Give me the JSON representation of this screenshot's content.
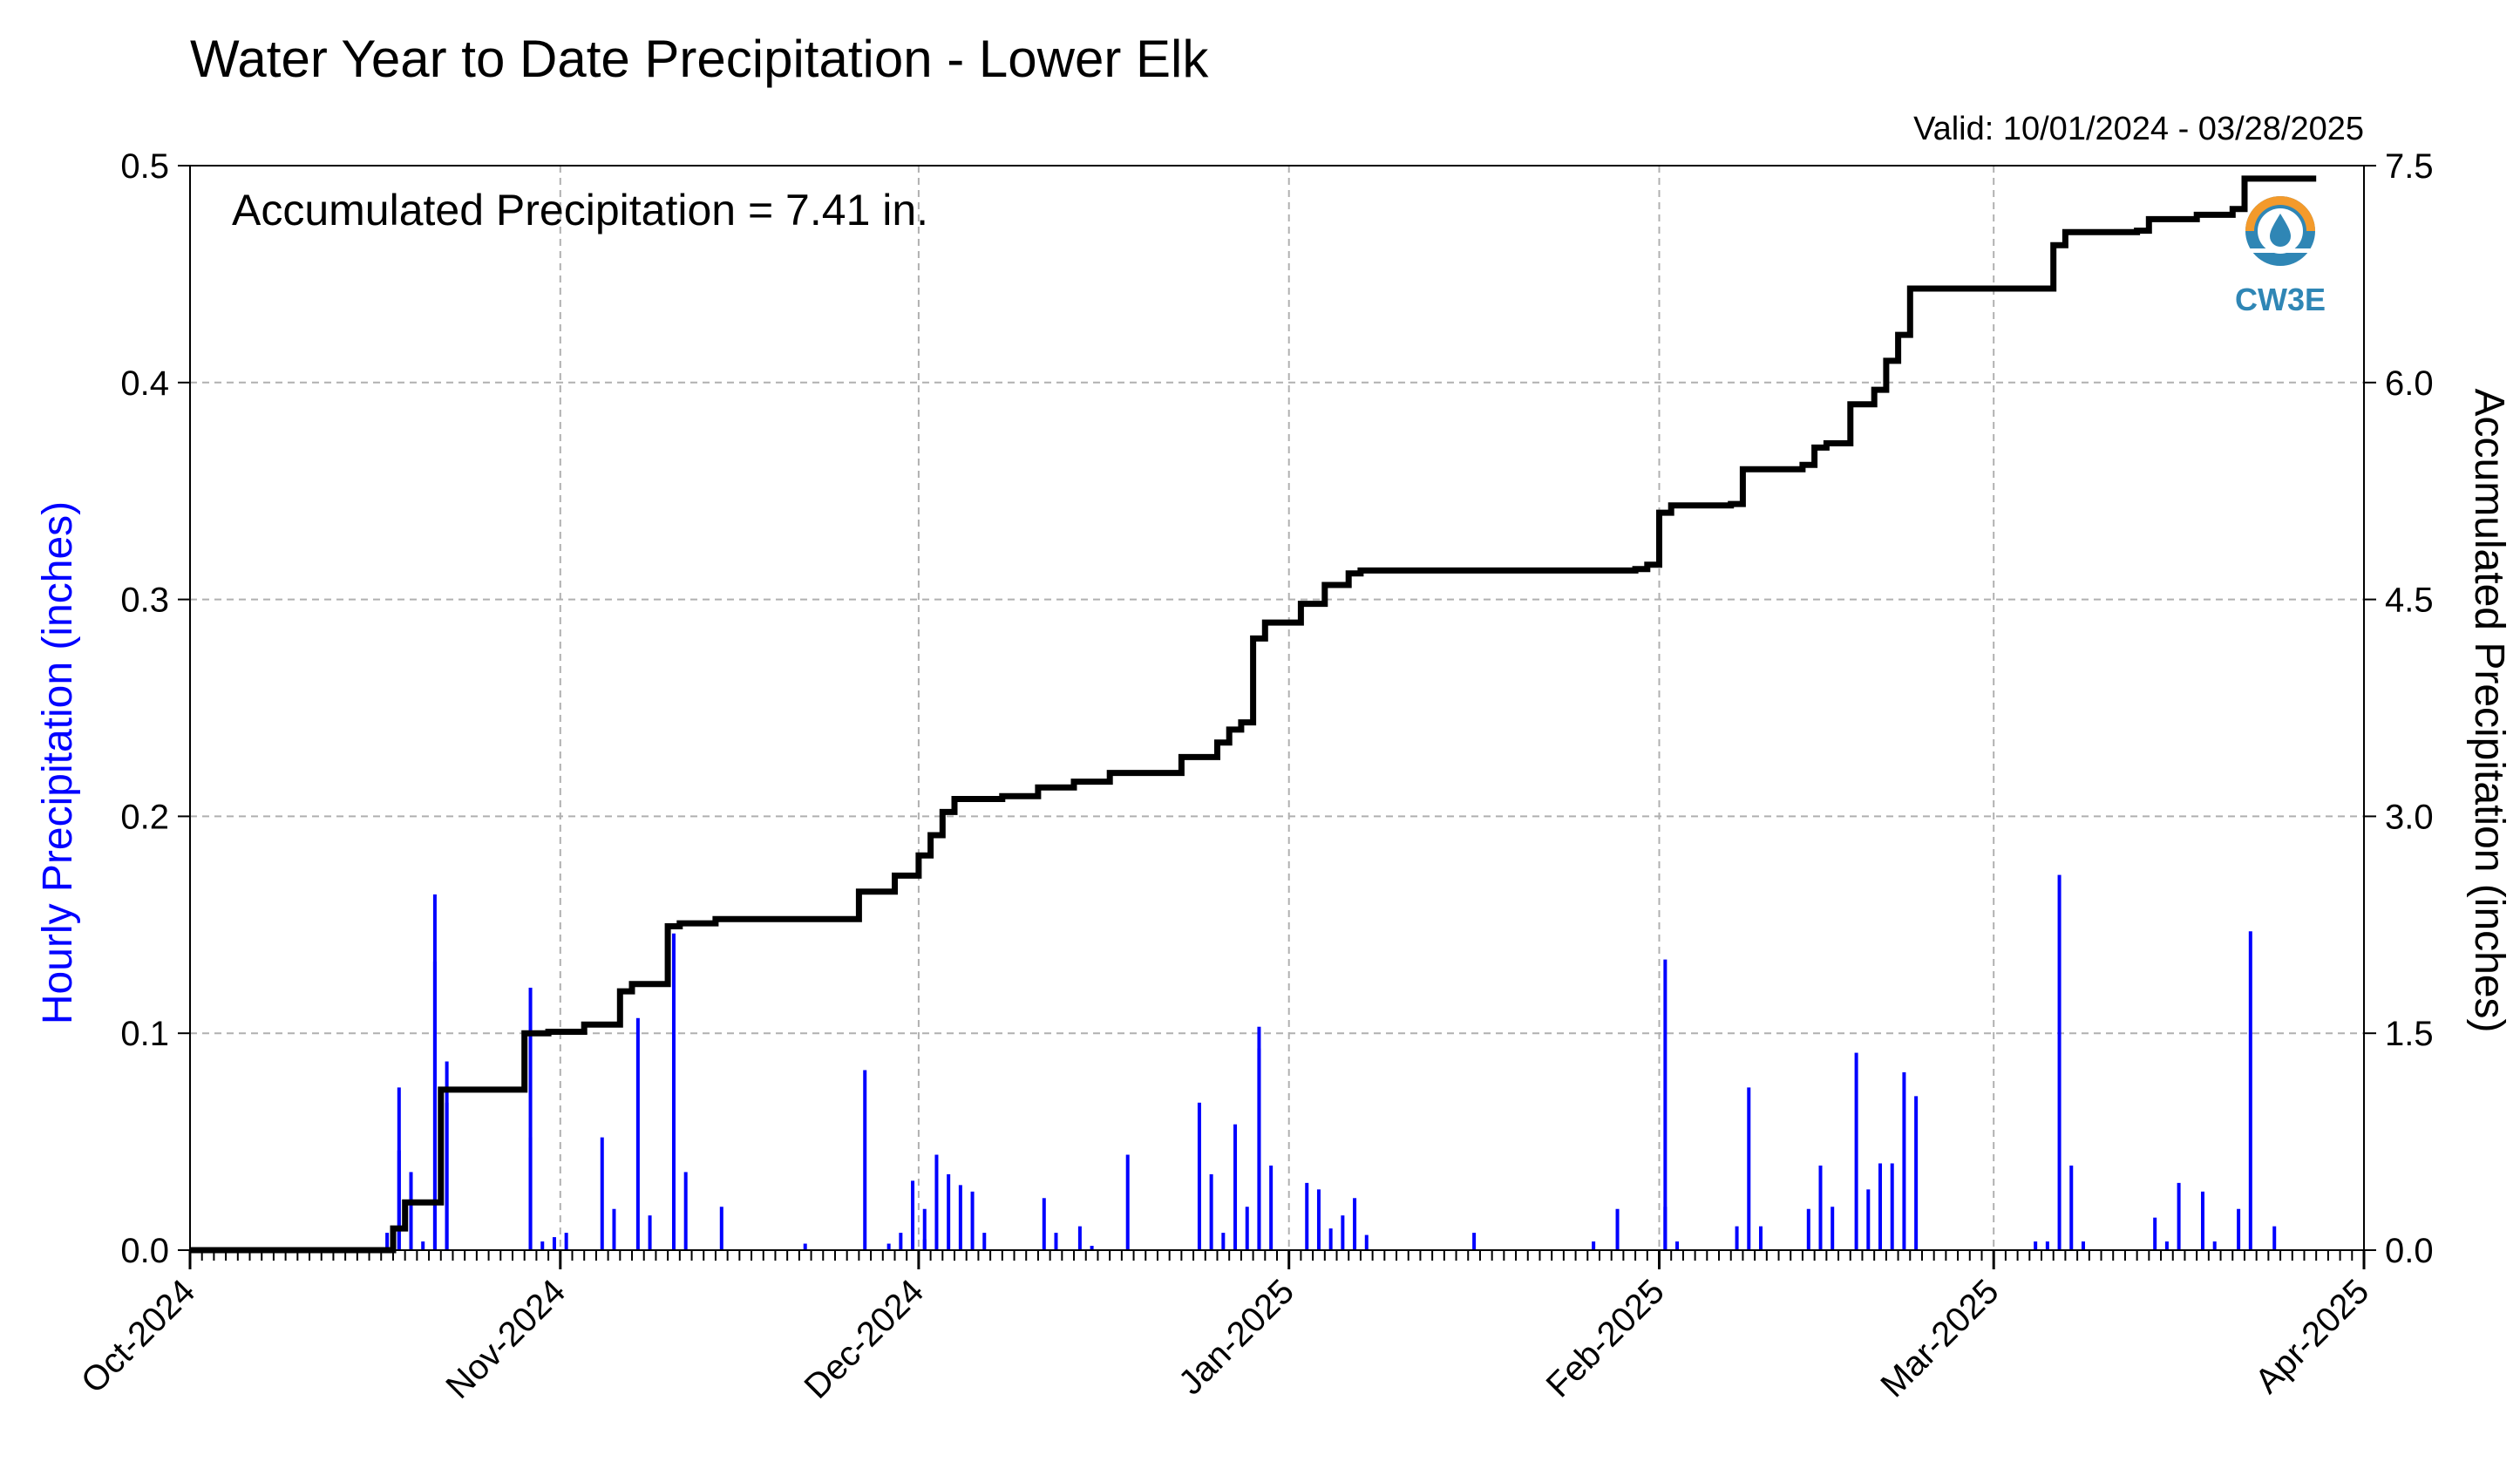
{
  "title": "Water Year to Date Precipitation - Lower Elk",
  "valid_text": "Valid: 10/01/2024 - 03/28/2025",
  "annotation": "Accumulated Precipitation = 7.41 in.",
  "logo_text": "CW3E",
  "colors": {
    "bars": "#0000ff",
    "line": "#000000",
    "left_label": "#0000ff",
    "grid": "#b0b0b0",
    "logo": "#2f86b5",
    "logo_accent": "#f39a2b"
  },
  "chart_data": {
    "type": "bar",
    "title": "Water Year to Date Precipitation - Lower Elk",
    "x_ticks": [
      "Oct-2024",
      "Nov-2024",
      "Dec-2024",
      "Jan-2025",
      "Feb-2025",
      "Mar-2025",
      "Apr-2025"
    ],
    "x_range": [
      "2024-10-01",
      "2025-04-01"
    ],
    "ylabel_left": "Hourly Precipitation (inches)",
    "ylabel_right": "Accumulated Precipitation (inches)",
    "ylim_left": [
      0,
      0.5
    ],
    "ylim_right": [
      0,
      7.5
    ],
    "yticks_left": [
      "0.0",
      "0.1",
      "0.2",
      "0.3",
      "0.4",
      "0.5"
    ],
    "yticks_right": [
      "0.0",
      "1.5",
      "3.0",
      "4.5",
      "6.0",
      "7.5"
    ],
    "grid": true,
    "series": [
      {
        "name": "Hourly Precipitation",
        "type": "bar",
        "axis": "left",
        "points": [
          [
            "2024-10-17",
            0.008
          ],
          [
            "2024-10-18",
            0.075
          ],
          [
            "2024-10-18",
            0.046
          ],
          [
            "2024-10-19",
            0.036
          ],
          [
            "2024-10-20",
            0.004
          ],
          [
            "2024-10-21",
            0.133
          ],
          [
            "2024-10-21",
            0.164
          ],
          [
            "2024-10-22",
            0.087
          ],
          [
            "2024-10-22",
            0.068
          ],
          [
            "2024-10-29",
            0.121
          ],
          [
            "2024-10-29",
            0.052
          ],
          [
            "2024-10-30",
            0.004
          ],
          [
            "2024-10-31",
            0.006
          ],
          [
            "2024-11-01",
            0.008
          ],
          [
            "2024-11-04",
            0.052
          ],
          [
            "2024-11-05",
            0.019
          ],
          [
            "2024-11-07",
            0.107
          ],
          [
            "2024-11-08",
            0.016
          ],
          [
            "2024-11-10",
            0.146
          ],
          [
            "2024-11-11",
            0.036
          ],
          [
            "2024-11-14",
            0.02
          ],
          [
            "2024-11-21",
            0.003
          ],
          [
            "2024-11-26",
            0.083
          ],
          [
            "2024-11-28",
            0.003
          ],
          [
            "2024-11-29",
            0.008
          ],
          [
            "2024-11-30",
            0.032
          ],
          [
            "2024-12-01",
            0.019
          ],
          [
            "2024-12-01",
            0.005
          ],
          [
            "2024-12-02",
            0.044
          ],
          [
            "2024-12-03",
            0.035
          ],
          [
            "2024-12-04",
            0.03
          ],
          [
            "2024-12-05",
            0.027
          ],
          [
            "2024-12-06",
            0.008
          ],
          [
            "2024-12-11",
            0.024
          ],
          [
            "2024-12-12",
            0.008
          ],
          [
            "2024-12-14",
            0.011
          ],
          [
            "2024-12-15",
            0.002
          ],
          [
            "2024-12-18",
            0.044
          ],
          [
            "2024-12-24",
            0.068
          ],
          [
            "2024-12-25",
            0.035
          ],
          [
            "2024-12-26",
            0.008
          ],
          [
            "2024-12-27",
            0.058
          ],
          [
            "2024-12-28",
            0.02
          ],
          [
            "2024-12-29",
            0.103
          ],
          [
            "2024-12-29",
            0.093
          ],
          [
            "2024-12-30",
            0.039
          ],
          [
            "2025-01-02",
            0.031
          ],
          [
            "2025-01-03",
            0.028
          ],
          [
            "2025-01-04",
            0.01
          ],
          [
            "2025-01-05",
            0.016
          ],
          [
            "2025-01-06",
            0.024
          ],
          [
            "2025-01-07",
            0.007
          ],
          [
            "2025-01-16",
            0.008
          ],
          [
            "2025-01-26",
            0.004
          ],
          [
            "2025-01-28",
            0.019
          ],
          [
            "2025-02-01",
            0.134
          ],
          [
            "2025-02-01",
            0.02
          ],
          [
            "2025-02-02",
            0.004
          ],
          [
            "2025-02-07",
            0.011
          ],
          [
            "2025-02-08",
            0.075
          ],
          [
            "2025-02-09",
            0.011
          ],
          [
            "2025-02-13",
            0.019
          ],
          [
            "2025-02-14",
            0.039
          ],
          [
            "2025-02-15",
            0.02
          ],
          [
            "2025-02-17",
            0.091
          ],
          [
            "2025-02-18",
            0.028
          ],
          [
            "2025-02-19",
            0.04
          ],
          [
            "2025-02-20",
            0.04
          ],
          [
            "2025-02-21",
            0.082
          ],
          [
            "2025-02-22",
            0.071
          ],
          [
            "2025-03-04",
            0.004
          ],
          [
            "2025-03-05",
            0.004
          ],
          [
            "2025-03-06",
            0.173
          ],
          [
            "2025-03-07",
            0.039
          ],
          [
            "2025-03-08",
            0.004
          ],
          [
            "2025-03-14",
            0.015
          ],
          [
            "2025-03-15",
            0.004
          ],
          [
            "2025-03-16",
            0.031
          ],
          [
            "2025-03-18",
            0.027
          ],
          [
            "2025-03-19",
            0.004
          ],
          [
            "2025-03-21",
            0.019
          ],
          [
            "2025-03-22",
            0.147
          ],
          [
            "2025-03-24",
            0.011
          ]
        ]
      },
      {
        "name": "Accumulated Precipitation",
        "type": "line",
        "axis": "right",
        "points": [
          [
            "2024-10-01",
            0.0
          ],
          [
            "2024-10-17",
            0.0
          ],
          [
            "2024-10-18",
            0.15
          ],
          [
            "2024-10-19",
            0.33
          ],
          [
            "2024-10-21",
            0.33
          ],
          [
            "2024-10-22",
            0.9
          ],
          [
            "2024-10-22",
            1.11
          ],
          [
            "2024-10-29",
            1.11
          ],
          [
            "2024-10-29",
            1.5
          ],
          [
            "2024-10-31",
            1.51
          ],
          [
            "2024-11-03",
            1.51
          ],
          [
            "2024-11-03",
            1.56
          ],
          [
            "2024-11-06",
            1.58
          ],
          [
            "2024-11-06",
            1.79
          ],
          [
            "2024-11-07",
            1.84
          ],
          [
            "2024-11-09",
            1.84
          ],
          [
            "2024-11-10",
            2.12
          ],
          [
            "2024-11-10",
            2.24
          ],
          [
            "2024-11-11",
            2.26
          ],
          [
            "2024-11-14",
            2.29
          ],
          [
            "2024-11-26",
            2.3
          ],
          [
            "2024-11-26",
            2.48
          ],
          [
            "2024-11-29",
            2.5
          ],
          [
            "2024-11-29",
            2.59
          ],
          [
            "2024-12-01",
            2.61
          ],
          [
            "2024-12-01",
            2.73
          ],
          [
            "2024-12-02",
            2.87
          ],
          [
            "2024-12-03",
            3.03
          ],
          [
            "2024-12-04",
            3.12
          ],
          [
            "2024-12-08",
            3.14
          ],
          [
            "2024-12-11",
            3.14
          ],
          [
            "2024-12-11",
            3.2
          ],
          [
            "2024-12-14",
            3.24
          ],
          [
            "2024-12-17",
            3.25
          ],
          [
            "2024-12-17",
            3.3
          ],
          [
            "2024-12-23",
            3.31
          ],
          [
            "2024-12-23",
            3.41
          ],
          [
            "2024-12-26",
            3.51
          ],
          [
            "2024-12-27",
            3.6
          ],
          [
            "2024-12-28",
            3.65
          ],
          [
            "2024-12-29",
            4.23
          ],
          [
            "2024-12-30",
            4.34
          ],
          [
            "2025-01-01",
            4.34
          ],
          [
            "2025-01-02",
            4.47
          ],
          [
            "2025-01-04",
            4.6
          ],
          [
            "2025-01-06",
            4.68
          ],
          [
            "2025-01-07",
            4.7
          ],
          [
            "2025-01-30",
            4.71
          ],
          [
            "2025-01-31",
            4.74
          ],
          [
            "2025-02-01",
            4.74
          ],
          [
            "2025-02-01",
            5.1
          ],
          [
            "2025-02-02",
            5.15
          ],
          [
            "2025-02-07",
            5.16
          ],
          [
            "2025-02-08",
            5.4
          ],
          [
            "2025-02-13",
            5.43
          ],
          [
            "2025-02-14",
            5.55
          ],
          [
            "2025-02-15",
            5.58
          ],
          [
            "2025-02-17",
            5.6
          ],
          [
            "2025-02-17",
            5.85
          ],
          [
            "2025-02-19",
            5.95
          ],
          [
            "2025-02-20",
            6.15
          ],
          [
            "2025-02-21",
            6.33
          ],
          [
            "2025-02-22",
            6.65
          ],
          [
            "2025-03-05",
            6.65
          ],
          [
            "2025-03-06",
            6.95
          ],
          [
            "2025-03-07",
            7.04
          ],
          [
            "2025-03-13",
            7.05
          ],
          [
            "2025-03-14",
            7.13
          ],
          [
            "2025-03-18",
            7.16
          ],
          [
            "2025-03-21",
            7.2
          ],
          [
            "2025-03-22",
            7.41
          ],
          [
            "2025-03-28",
            7.41
          ]
        ]
      }
    ]
  }
}
